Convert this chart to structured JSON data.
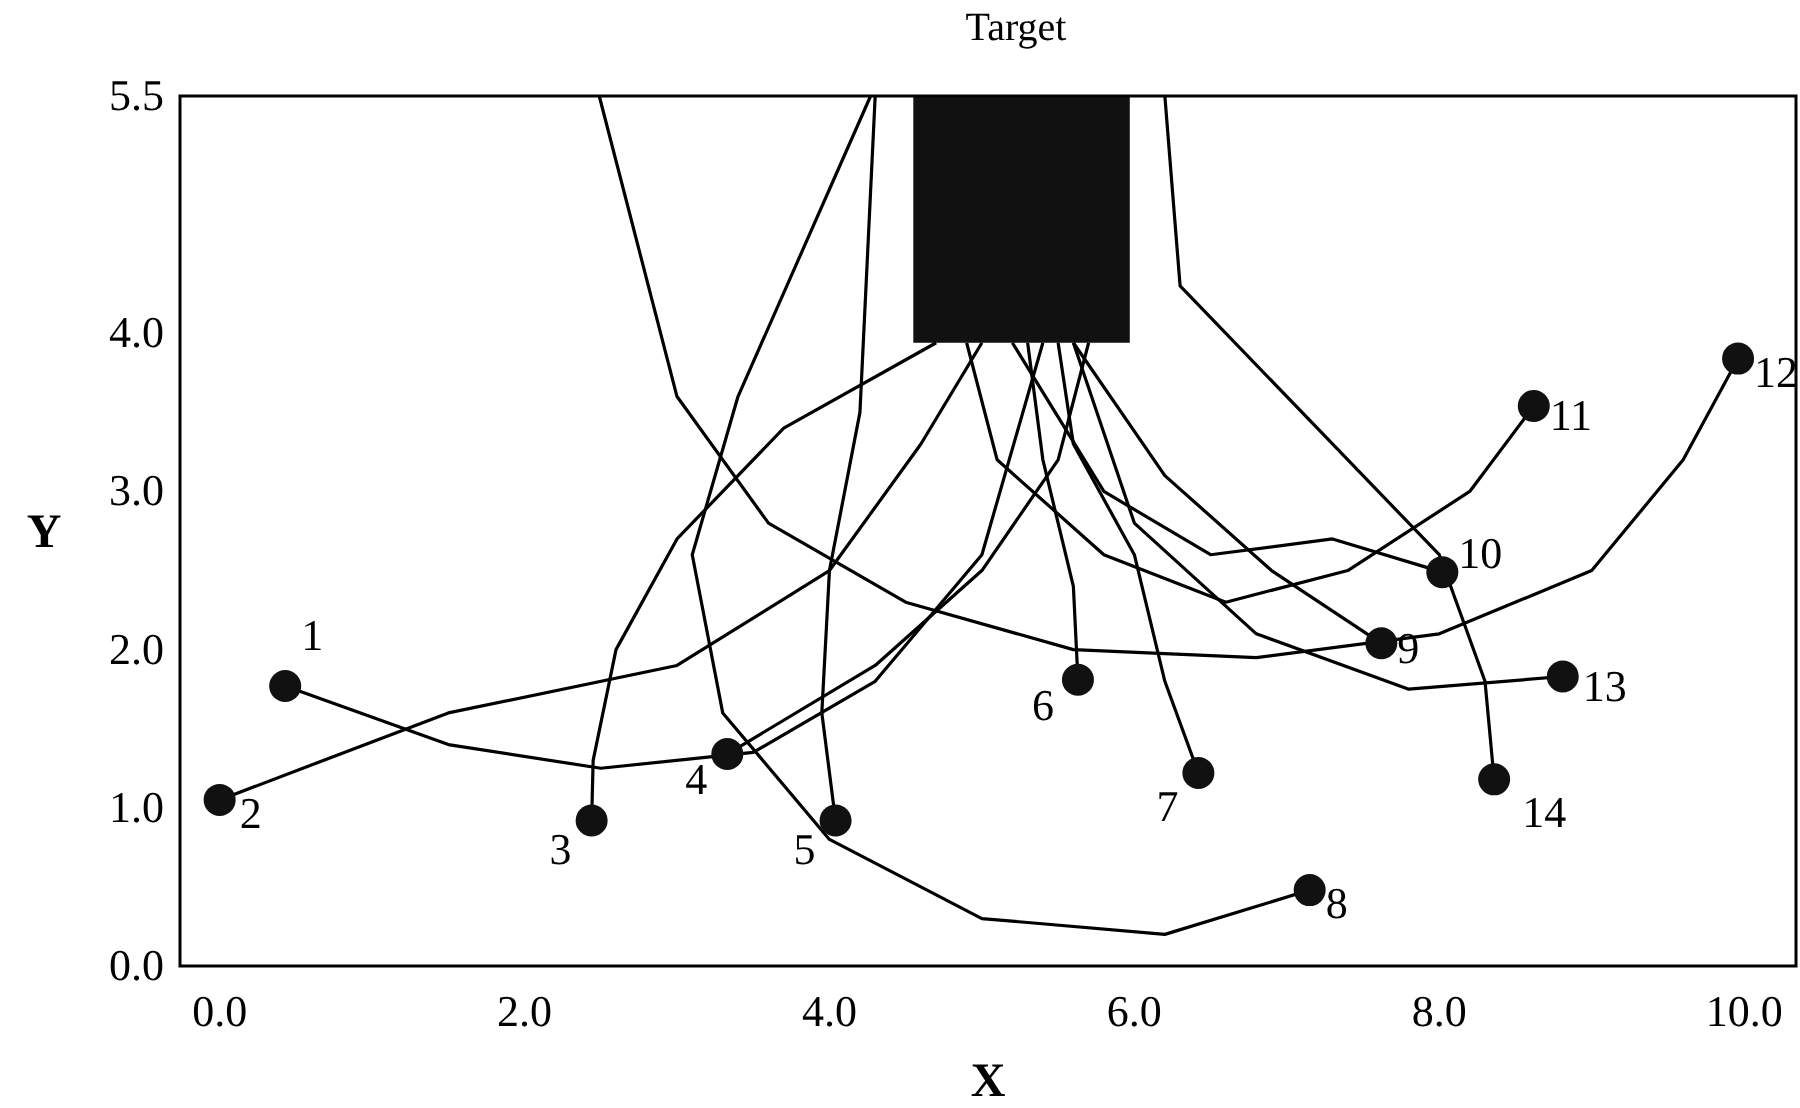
{
  "chart_data": {
    "type": "line",
    "xlabel": "X",
    "ylabel": "Y",
    "annotations": [
      "Target"
    ],
    "xlim": [
      -0.26,
      10.34
    ],
    "xticks": [
      {
        "value": 0,
        "label": "0.0"
      },
      {
        "value": 2,
        "label": "2.0"
      },
      {
        "value": 4,
        "label": "4.0"
      },
      {
        "value": 6,
        "label": "6.0"
      },
      {
        "value": 8,
        "label": "8.0"
      },
      {
        "value": 10,
        "label": "10.0"
      }
    ],
    "ylim": [
      0,
      5.5
    ],
    "yticks": [
      {
        "value": 0,
        "label": "0.0"
      },
      {
        "value": 1,
        "label": "1.0"
      },
      {
        "value": 2,
        "label": "2.0"
      },
      {
        "value": 3,
        "label": "3.0"
      },
      {
        "value": 4,
        "label": "4.0"
      },
      {
        "value": 5.5,
        "label": "5.5"
      }
    ],
    "grid": false,
    "line_style": "solid",
    "series": [
      {
        "type": "bar",
        "color": "#111111",
        "x": [
          5.26
        ],
        "values": [
          1.56
        ],
        "base": [
          3.94
        ]
      },
      {
        "color": "#000000",
        "x": [
          0.43,
          1.5,
          2.5,
          3.5,
          4.3,
          5.0,
          5.4
        ],
        "values": [
          1.77,
          1.4,
          1.25,
          1.35,
          1.8,
          2.6,
          3.94
        ]
      },
      {
        "color": "#000000",
        "x": [
          0.0,
          1.5,
          3.0,
          4.0,
          4.6,
          5.0
        ],
        "values": [
          1.05,
          1.6,
          1.9,
          2.5,
          3.3,
          3.94
        ]
      },
      {
        "color": "#000000",
        "x": [
          2.44,
          2.45,
          2.6,
          3.0,
          3.7,
          4.7
        ],
        "values": [
          0.92,
          1.3,
          2.0,
          2.7,
          3.4,
          3.94
        ]
      },
      {
        "color": "#000000",
        "x": [
          3.33,
          4.3,
          5.0,
          5.5,
          5.7
        ],
        "values": [
          1.34,
          1.9,
          2.5,
          3.2,
          3.94
        ]
      },
      {
        "color": "#000000",
        "x": [
          4.04,
          3.95,
          4.0,
          4.2,
          4.3
        ],
        "values": [
          0.92,
          1.6,
          2.5,
          3.5,
          5.5
        ]
      },
      {
        "color": "#000000",
        "x": [
          5.63,
          5.6,
          5.4,
          5.3
        ],
        "values": [
          1.81,
          2.4,
          3.2,
          3.94
        ]
      },
      {
        "color": "#000000",
        "x": [
          6.42,
          6.2,
          6.0,
          5.6,
          5.5
        ],
        "values": [
          1.22,
          1.8,
          2.6,
          3.3,
          3.94
        ]
      },
      {
        "color": "#000000",
        "x": [
          7.15,
          6.2,
          5.0,
          4.0,
          3.3,
          3.1,
          3.4,
          4.27
        ],
        "values": [
          0.48,
          0.2,
          0.3,
          0.8,
          1.6,
          2.6,
          3.6,
          5.5
        ]
      },
      {
        "color": "#000000",
        "x": [
          7.62,
          6.9,
          6.2,
          5.6
        ],
        "values": [
          2.04,
          2.5,
          3.1,
          3.94
        ]
      },
      {
        "color": "#000000",
        "x": [
          8.02,
          7.3,
          6.5,
          5.8,
          5.2
        ],
        "values": [
          2.49,
          2.7,
          2.6,
          3.0,
          3.94
        ]
      },
      {
        "color": "#000000",
        "x": [
          8.62,
          8.2,
          7.4,
          6.6,
          5.8,
          5.1,
          4.9
        ],
        "values": [
          3.54,
          3.0,
          2.5,
          2.3,
          2.6,
          3.2,
          3.94
        ]
      },
      {
        "color": "#000000",
        "x": [
          9.96,
          9.6,
          9.0,
          8.0,
          6.8,
          5.6,
          4.5,
          3.6,
          3.0,
          2.49
        ],
        "values": [
          3.84,
          3.2,
          2.5,
          2.1,
          1.95,
          2.0,
          2.3,
          2.8,
          3.6,
          5.5
        ]
      },
      {
        "color": "#000000",
        "x": [
          8.81,
          7.8,
          6.8,
          6.0,
          5.6
        ],
        "values": [
          1.83,
          1.75,
          2.1,
          2.8,
          3.94
        ]
      },
      {
        "color": "#000000",
        "x": [
          8.36,
          8.3,
          8.0,
          7.2,
          6.3,
          6.2
        ],
        "values": [
          1.18,
          1.8,
          2.6,
          3.4,
          4.3,
          5.5
        ]
      },
      {
        "type": "scatter",
        "marker": "circle",
        "color": "#111111",
        "name": "1",
        "x": [
          0.43
        ],
        "values": [
          1.77
        ]
      },
      {
        "type": "scatter",
        "marker": "circle",
        "color": "#111111",
        "name": "2",
        "x": [
          0.0
        ],
        "values": [
          1.05
        ]
      },
      {
        "type": "scatter",
        "marker": "circle",
        "color": "#111111",
        "name": "3",
        "x": [
          2.44
        ],
        "values": [
          0.92
        ]
      },
      {
        "type": "scatter",
        "marker": "circle",
        "color": "#111111",
        "name": "4",
        "x": [
          3.33
        ],
        "values": [
          1.34
        ]
      },
      {
        "type": "scatter",
        "marker": "circle",
        "color": "#111111",
        "name": "5",
        "x": [
          4.04
        ],
        "values": [
          0.92
        ]
      },
      {
        "type": "scatter",
        "marker": "circle",
        "color": "#111111",
        "name": "6",
        "x": [
          5.63
        ],
        "values": [
          1.81
        ]
      },
      {
        "type": "scatter",
        "marker": "circle",
        "color": "#111111",
        "name": "7",
        "x": [
          6.42
        ],
        "values": [
          1.22
        ]
      },
      {
        "type": "scatter",
        "marker": "circle",
        "color": "#111111",
        "name": "8",
        "x": [
          7.15
        ],
        "values": [
          0.48
        ]
      },
      {
        "type": "scatter",
        "marker": "circle",
        "color": "#111111",
        "name": "9",
        "x": [
          7.62
        ],
        "values": [
          2.04
        ]
      },
      {
        "type": "scatter",
        "marker": "circle",
        "color": "#111111",
        "name": "10",
        "x": [
          8.02
        ],
        "values": [
          2.49
        ]
      },
      {
        "type": "scatter",
        "marker": "circle",
        "color": "#111111",
        "name": "11",
        "x": [
          8.62
        ],
        "values": [
          3.54
        ]
      },
      {
        "type": "scatter",
        "marker": "circle",
        "color": "#111111",
        "name": "12",
        "x": [
          9.96
        ],
        "values": [
          3.84
        ]
      },
      {
        "type": "scatter",
        "marker": "circle",
        "color": "#111111",
        "name": "13",
        "x": [
          8.81
        ],
        "values": [
          1.83
        ]
      },
      {
        "type": "scatter",
        "marker": "circle",
        "color": "#111111",
        "name": "14",
        "x": [
          8.36
        ],
        "values": [
          1.18
        ]
      }
    ]
  }
}
